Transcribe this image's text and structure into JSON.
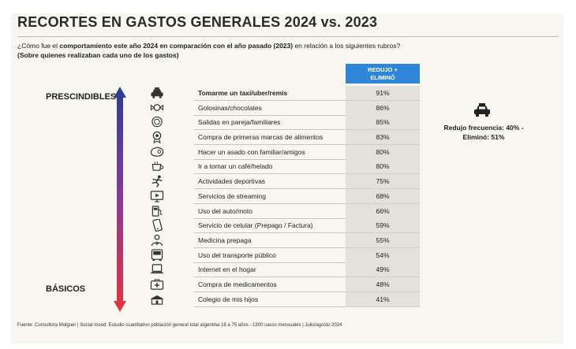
{
  "title": "RECORTES EN GASTOS GENERALES 2024 vs. 2023",
  "question": {
    "prefix": "¿Cómo fue el ",
    "bold": "comportamiento este año 2024 en comparación con el año pasado (2023)",
    "suffix": " en relación a los siguientes rubros?",
    "subtitle": "(Sobre quienes realizaban cada uno de los gastos)"
  },
  "column_header": "REDUJO +\nELIMINÓ",
  "scale": {
    "top": "PRESCINDIBLES",
    "bottom": "BÁSICOS"
  },
  "note": "Redujo frecuencia: 40% - Eliminó: 51%",
  "source": "Fuente: Consultora Moiguer | Social mood: Estudio cuantitativo población general total argentina 16 a 75 años - 1300 casos mensuales |  Julio/agosto 2024",
  "colors": {
    "header": "#2f86d8",
    "arrow_top": "#2b3d94",
    "arrow_bottom": "#e8323a",
    "value_bg": "#e2e1dc"
  },
  "chart_data": {
    "type": "table",
    "columns": [
      "Rubro",
      "REDUJO + ELIMINÓ"
    ],
    "rows": [
      {
        "category": "Tomarme un taxi/uber/remis",
        "value": "91%",
        "icon": "taxi-icon",
        "highlight": true
      },
      {
        "category": "Golosinas/chocolates",
        "value": "86%",
        "icon": "candy-icon"
      },
      {
        "category": "Salidas en pareja/familiares",
        "value": "85%",
        "icon": "dining-icon"
      },
      {
        "category": "Compra de primeras marcas de alimentos",
        "value": "83%",
        "icon": "brand-badge-icon"
      },
      {
        "category": "Hacer un asado con familiar/amigos",
        "value": "80%",
        "icon": "steak-icon"
      },
      {
        "category": "Ir a tomar un café/helado",
        "value": "80%",
        "icon": "coffee-cup-icon"
      },
      {
        "category": "Actividades deportivas",
        "value": "75%",
        "icon": "running-person-icon"
      },
      {
        "category": "Servicios de streaming",
        "value": "68%",
        "icon": "tv-icon"
      },
      {
        "category": "Uso del auto/moto",
        "value": "66%",
        "icon": "fuel-pump-icon"
      },
      {
        "category": "Servicio de celular (Prepago / Factura)",
        "value": "59%",
        "icon": "mobile-phone-icon"
      },
      {
        "category": "Medicina prepaga",
        "value": "55%",
        "icon": "doctor-icon"
      },
      {
        "category": "Uso del transporte público",
        "value": "54%",
        "icon": "bus-icon"
      },
      {
        "category": "Internet en el hogar",
        "value": "49%",
        "icon": "laptop-icon"
      },
      {
        "category": "Compra de medicamentos",
        "value": "48%",
        "icon": "pharmacy-icon"
      },
      {
        "category": "Colegio de mis hijos",
        "value": "41%",
        "icon": "school-icon"
      }
    ]
  }
}
